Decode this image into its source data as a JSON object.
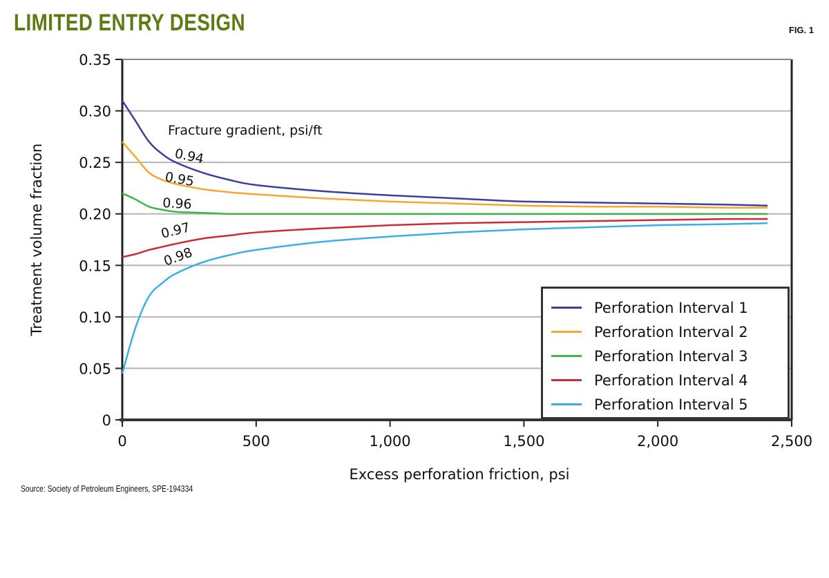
{
  "header": {
    "title": "LIMITED ENTRY DESIGN",
    "fig_label": "FIG. 1"
  },
  "footer": {
    "source": "Source: Society of Petroleum Engineers, SPE-194334"
  },
  "chart_data": {
    "type": "line",
    "title": "LIMITED ENTRY DESIGN",
    "xlabel": "Excess perforation friction, psi",
    "ylabel": "Treatment volume fraction",
    "xlim": [
      0,
      2500
    ],
    "ylim": [
      0,
      0.35
    ],
    "x_ticks": [
      "0",
      "500",
      "1,000",
      "1,500",
      "2,000",
      "2,500"
    ],
    "y_ticks": [
      "0",
      "0.05",
      "0.10",
      "0.15",
      "0.20",
      "0.25",
      "0.30",
      "0.35"
    ],
    "grid": "horizontal",
    "legend_position": "lower right",
    "annotation_title": "Fracture gradient, psi/ft",
    "x": [
      0,
      50,
      100,
      150,
      200,
      300,
      400,
      500,
      750,
      1000,
      1250,
      1500,
      1750,
      2000,
      2250,
      2410
    ],
    "series": [
      {
        "name": "Perforation Interval 1",
        "color": "#3a3f9e",
        "gradient_label": "0.94",
        "values": [
          0.31,
          0.29,
          0.27,
          0.258,
          0.25,
          0.24,
          0.233,
          0.228,
          0.222,
          0.218,
          0.215,
          0.212,
          0.211,
          0.21,
          0.209,
          0.208
        ]
      },
      {
        "name": "Perforation Interval 2",
        "color": "#f9a533",
        "gradient_label": "0.95",
        "values": [
          0.27,
          0.255,
          0.24,
          0.233,
          0.229,
          0.224,
          0.221,
          0.219,
          0.215,
          0.212,
          0.21,
          0.208,
          0.207,
          0.207,
          0.206,
          0.206
        ]
      },
      {
        "name": "Perforation Interval 3",
        "color": "#3db54a",
        "gradient_label": "0.96",
        "values": [
          0.22,
          0.214,
          0.207,
          0.204,
          0.202,
          0.201,
          0.2,
          0.2,
          0.2,
          0.2,
          0.2,
          0.2,
          0.2,
          0.2,
          0.2,
          0.2
        ]
      },
      {
        "name": "Perforation Interval 4",
        "color": "#cc2b36",
        "gradient_label": "0.97",
        "values": [
          0.158,
          0.161,
          0.165,
          0.168,
          0.171,
          0.176,
          0.179,
          0.182,
          0.186,
          0.189,
          0.191,
          0.192,
          0.193,
          0.194,
          0.195,
          0.195
        ]
      },
      {
        "name": "Perforation Interval 5",
        "color": "#3aaee8",
        "gradient_label": "0.98",
        "values": [
          0.045,
          0.09,
          0.12,
          0.133,
          0.142,
          0.153,
          0.16,
          0.165,
          0.173,
          0.178,
          0.182,
          0.185,
          0.187,
          0.189,
          0.19,
          0.191
        ]
      }
    ]
  }
}
